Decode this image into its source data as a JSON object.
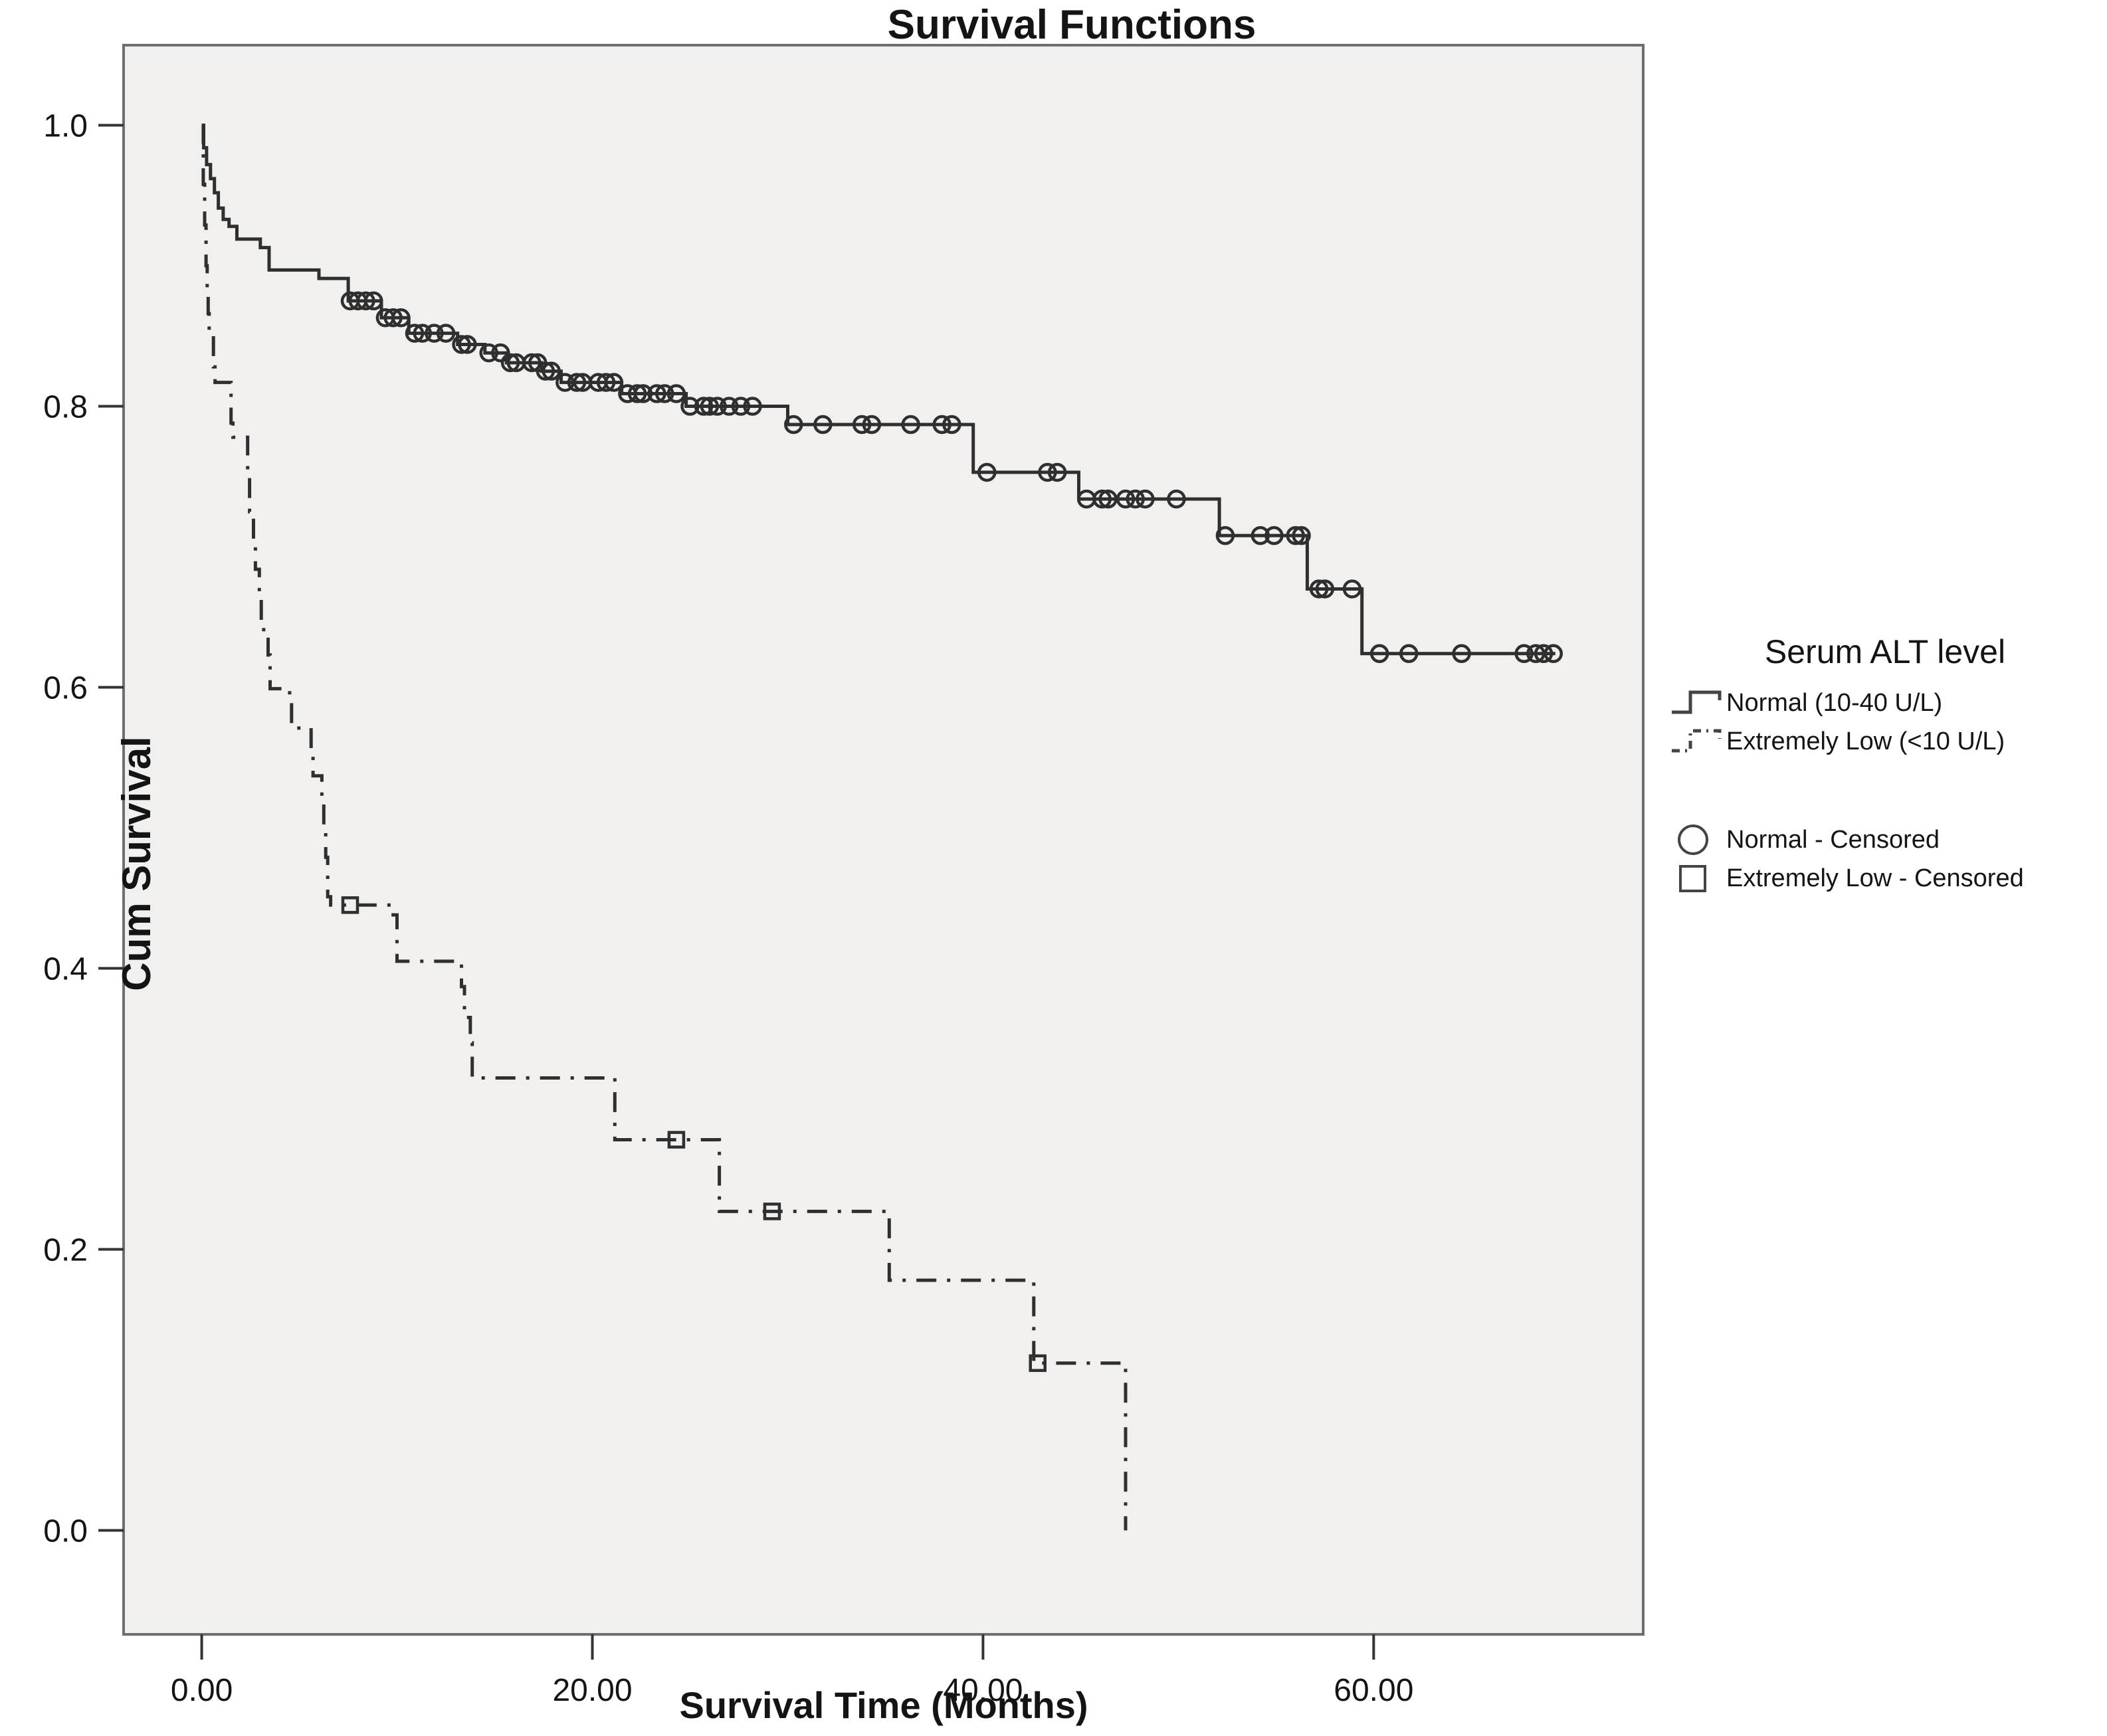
{
  "title": "Survival Functions",
  "axes": {
    "x": {
      "label": "Survival Time (Months)",
      "ticks": [
        "0.00",
        "20.00",
        "40.00",
        "60.00"
      ],
      "tick_values": [
        0,
        20,
        40,
        60
      ]
    },
    "y": {
      "label": "Cum Survival",
      "ticks": [
        "1.0",
        "0.8",
        "0.6",
        "0.4",
        "0.2",
        "0.0"
      ],
      "tick_values": [
        1.0,
        0.8,
        0.6,
        0.4,
        0.2,
        0.0
      ]
    }
  },
  "legend": {
    "title": "Serum ALT level",
    "series": [
      {
        "label": "Normal  (10-40 U/L)",
        "style": "solid-step"
      },
      {
        "label": "Extremely Low (<10 U/L)",
        "style": "dash-dot-step"
      }
    ],
    "censored": [
      {
        "label": "Normal - Censored",
        "marker": "circle"
      },
      {
        "label": "Extremely Low - Censored",
        "marker": "square"
      }
    ]
  },
  "colors": {
    "curve": "#2f2f2f",
    "plot_bg": "#f1f0ee",
    "page_bg": "#ffffff",
    "plot_border": "#6e6e6e",
    "text": "#141414"
  },
  "chart_data": {
    "type": "line",
    "subtype": "kaplan-meier-step",
    "title": "Survival Functions",
    "xlabel": "Survival Time (Months)",
    "ylabel": "Cum Survival",
    "xlim": [
      -4,
      73.8
    ],
    "ylim": [
      -0.074,
      1.057
    ],
    "grid": false,
    "legend_position": "right",
    "series": [
      {
        "name": "Normal  (10-40 U/L)",
        "line": "solid",
        "censor_marker": "circle",
        "end_t": 69.3,
        "steps": [
          [
            0,
            1.0
          ],
          [
            0.1,
            0.984
          ],
          [
            0.25,
            0.972
          ],
          [
            0.45,
            0.962
          ],
          [
            0.65,
            0.952
          ],
          [
            0.85,
            0.941
          ],
          [
            1.1,
            0.933
          ],
          [
            1.4,
            0.928
          ],
          [
            1.8,
            0.919
          ],
          [
            3.0,
            0.913
          ],
          [
            3.45,
            0.897
          ],
          [
            6.0,
            0.891
          ],
          [
            7.5,
            0.875
          ],
          [
            9.2,
            0.863
          ],
          [
            10.6,
            0.852
          ],
          [
            13.1,
            0.844
          ],
          [
            14.5,
            0.838
          ],
          [
            15.6,
            0.831
          ],
          [
            17.4,
            0.825
          ],
          [
            18.4,
            0.817
          ],
          [
            21.5,
            0.809
          ],
          [
            24.8,
            0.8
          ],
          [
            30.0,
            0.787
          ],
          [
            39.5,
            0.753
          ],
          [
            44.9,
            0.734
          ],
          [
            52.1,
            0.708
          ],
          [
            56.6,
            0.67
          ],
          [
            59.4,
            0.624
          ]
        ],
        "censors": [
          [
            7.6,
            0.875
          ],
          [
            8.0,
            0.875
          ],
          [
            8.4,
            0.875
          ],
          [
            8.8,
            0.875
          ],
          [
            9.4,
            0.863
          ],
          [
            9.8,
            0.863
          ],
          [
            10.2,
            0.863
          ],
          [
            10.9,
            0.852
          ],
          [
            11.3,
            0.852
          ],
          [
            11.9,
            0.852
          ],
          [
            12.5,
            0.852
          ],
          [
            13.3,
            0.844
          ],
          [
            13.6,
            0.844
          ],
          [
            14.7,
            0.838
          ],
          [
            15.3,
            0.838
          ],
          [
            15.8,
            0.831
          ],
          [
            16.1,
            0.831
          ],
          [
            16.9,
            0.831
          ],
          [
            17.2,
            0.831
          ],
          [
            17.6,
            0.825
          ],
          [
            17.9,
            0.825
          ],
          [
            18.6,
            0.817
          ],
          [
            19.2,
            0.817
          ],
          [
            19.5,
            0.817
          ],
          [
            20.3,
            0.817
          ],
          [
            20.7,
            0.817
          ],
          [
            21.1,
            0.817
          ],
          [
            21.8,
            0.809
          ],
          [
            22.3,
            0.809
          ],
          [
            22.6,
            0.809
          ],
          [
            23.3,
            0.809
          ],
          [
            23.7,
            0.809
          ],
          [
            24.3,
            0.809
          ],
          [
            25.0,
            0.8
          ],
          [
            25.7,
            0.8
          ],
          [
            26.0,
            0.8
          ],
          [
            26.4,
            0.8
          ],
          [
            27.0,
            0.8
          ],
          [
            27.6,
            0.8
          ],
          [
            28.2,
            0.8
          ],
          [
            30.3,
            0.787
          ],
          [
            31.8,
            0.787
          ],
          [
            33.8,
            0.787
          ],
          [
            34.3,
            0.787
          ],
          [
            36.3,
            0.787
          ],
          [
            37.9,
            0.787
          ],
          [
            38.4,
            0.787
          ],
          [
            40.2,
            0.753
          ],
          [
            43.3,
            0.753
          ],
          [
            43.8,
            0.753
          ],
          [
            45.3,
            0.734
          ],
          [
            46.1,
            0.734
          ],
          [
            46.4,
            0.734
          ],
          [
            47.3,
            0.734
          ],
          [
            47.8,
            0.734
          ],
          [
            48.3,
            0.734
          ],
          [
            49.9,
            0.734
          ],
          [
            52.4,
            0.708
          ],
          [
            54.2,
            0.708
          ],
          [
            54.9,
            0.708
          ],
          [
            56.0,
            0.708
          ],
          [
            56.3,
            0.708
          ],
          [
            57.2,
            0.67
          ],
          [
            57.5,
            0.67
          ],
          [
            58.9,
            0.67
          ],
          [
            60.3,
            0.624
          ],
          [
            61.8,
            0.624
          ],
          [
            64.5,
            0.624
          ],
          [
            67.7,
            0.624
          ],
          [
            68.3,
            0.624
          ],
          [
            68.7,
            0.624
          ],
          [
            69.2,
            0.624
          ]
        ]
      },
      {
        "name": "Extremely Low (<10 U/L)",
        "line": "dash-dot",
        "censor_marker": "square",
        "end_t": 47.3,
        "steps": [
          [
            0,
            1.0
          ],
          [
            0.08,
            0.958
          ],
          [
            0.15,
            0.929
          ],
          [
            0.22,
            0.9
          ],
          [
            0.28,
            0.883
          ],
          [
            0.33,
            0.866
          ],
          [
            0.38,
            0.854
          ],
          [
            0.6,
            0.828
          ],
          [
            0.68,
            0.817
          ],
          [
            1.5,
            0.788
          ],
          [
            1.6,
            0.778
          ],
          [
            2.35,
            0.749
          ],
          [
            2.45,
            0.725
          ],
          [
            2.65,
            0.702
          ],
          [
            2.75,
            0.684
          ],
          [
            2.95,
            0.663
          ],
          [
            3.05,
            0.641
          ],
          [
            3.4,
            0.623
          ],
          [
            3.5,
            0.599
          ],
          [
            4.5,
            0.593
          ],
          [
            4.6,
            0.571
          ],
          [
            5.6,
            0.556
          ],
          [
            5.7,
            0.537
          ],
          [
            6.15,
            0.519
          ],
          [
            6.25,
            0.497
          ],
          [
            6.35,
            0.479
          ],
          [
            6.45,
            0.451
          ],
          [
            6.6,
            0.445
          ],
          [
            9.8,
            0.438
          ],
          [
            10.0,
            0.405
          ],
          [
            13.3,
            0.387
          ],
          [
            13.45,
            0.365
          ],
          [
            13.75,
            0.347
          ],
          [
            13.85,
            0.322
          ],
          [
            21.15,
            0.278
          ],
          [
            26.5,
            0.227
          ],
          [
            35.2,
            0.178
          ],
          [
            42.6,
            0.119
          ],
          [
            47.3,
            0.0
          ]
        ],
        "censors": [
          [
            7.6,
            0.445
          ],
          [
            24.3,
            0.278
          ],
          [
            29.2,
            0.227
          ],
          [
            42.8,
            0.119
          ]
        ]
      }
    ]
  }
}
